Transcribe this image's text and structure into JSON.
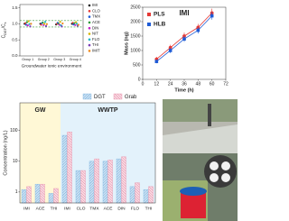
{
  "chart_data": [
    {
      "type": "scatter",
      "ylabel": [
        "C",
        "DGT",
        "/C",
        "s"
      ],
      "xlabel": "Groundwater ionic environment",
      "categories": [
        "Group 1",
        "Group 2",
        "Group 3",
        "Group 4"
      ],
      "ylim": [
        0,
        1.6
      ],
      "yticks": [
        {
          "value": 0,
          "label": "0.0"
        },
        0.5,
        {
          "value": 1,
          "label": "1.0"
        },
        1.5
      ],
      "reference_lines": [
        0.9,
        1.1
      ],
      "series": [
        {
          "name": "IMI",
          "color": "#222222",
          "values": [
            1.0,
            1.0,
            0.98,
            1.0
          ]
        },
        {
          "name": "CLO",
          "color": "#e53935",
          "values": [
            1.02,
            0.97,
            1.0,
            1.03
          ]
        },
        {
          "name": "TMX",
          "color": "#1e5bd6",
          "values": [
            0.97,
            1.02,
            1.03,
            0.98
          ]
        },
        {
          "name": "ACE",
          "color": "#2e9c3a",
          "values": [
            1.05,
            1.04,
            1.0,
            1.02
          ]
        },
        {
          "name": "DIN",
          "color": "#c51fc5",
          "values": [
            0.95,
            0.96,
            0.97,
            0.96
          ]
        },
        {
          "name": "NIT",
          "color": "#d4b400",
          "values": [
            1.08,
            1.0,
            1.06,
            1.05
          ]
        },
        {
          "name": "FLO",
          "color": "#1db7c9",
          "values": [
            0.99,
            1.06,
            0.95,
            1.0
          ]
        },
        {
          "name": "THI",
          "color": "#7b3fb8",
          "values": [
            0.92,
            0.93,
            0.92,
            0.94
          ]
        },
        {
          "name": "IMIT",
          "color": "#f08a1c",
          "values": [
            1.0,
            0.99,
            1.01,
            0.97
          ]
        }
      ]
    },
    {
      "type": "line",
      "title": "IMI",
      "xlabel": "Time (h)",
      "ylabel": "Mass (ng)",
      "xlim": [
        0,
        72
      ],
      "xticks": [
        0,
        12,
        24,
        36,
        48,
        60,
        72
      ],
      "ylim": [
        0,
        2500
      ],
      "yticks": [
        0,
        500,
        1000,
        1500,
        2000,
        2500
      ],
      "x": [
        12,
        24,
        36,
        48,
        60
      ],
      "series": [
        {
          "name": "PLS",
          "color": "#e53935",
          "values": [
            700,
            1100,
            1500,
            1800,
            2300
          ],
          "errors": [
            80,
            100,
            120,
            120,
            150
          ]
        },
        {
          "name": "HLB",
          "color": "#1e5bd6",
          "values": [
            620,
            1000,
            1400,
            1700,
            2200
          ],
          "errors": [
            60,
            90,
            100,
            110,
            130
          ]
        }
      ]
    },
    {
      "type": "bar",
      "ylabel": "Concentration (ng/L)",
      "log_scale": true,
      "ylim": [
        0.44,
        800
      ],
      "yticks": [
        1,
        10,
        100
      ],
      "groups": [
        {
          "name": "GW",
          "color": "#fff8d6",
          "categories": [
            "IMI",
            "ACE",
            "THI"
          ]
        },
        {
          "name": "WWTP",
          "color": "#e3f2fb",
          "categories": [
            "IMI",
            "CLO",
            "TMX",
            "ACE",
            "DIN",
            "FLO",
            "THI"
          ]
        }
      ],
      "series": [
        {
          "name": "DGT",
          "color": "#7fb6e0",
          "values": [
            1.2,
            1.8,
            0.9,
            70,
            5,
            10,
            10,
            12,
            1.5,
            1.2
          ]
        },
        {
          "name": "Grab",
          "color": "#e890a8",
          "values": [
            1.5,
            1.8,
            1.3,
            90,
            5,
            12,
            11,
            14,
            2,
            1.5
          ]
        }
      ]
    }
  ]
}
